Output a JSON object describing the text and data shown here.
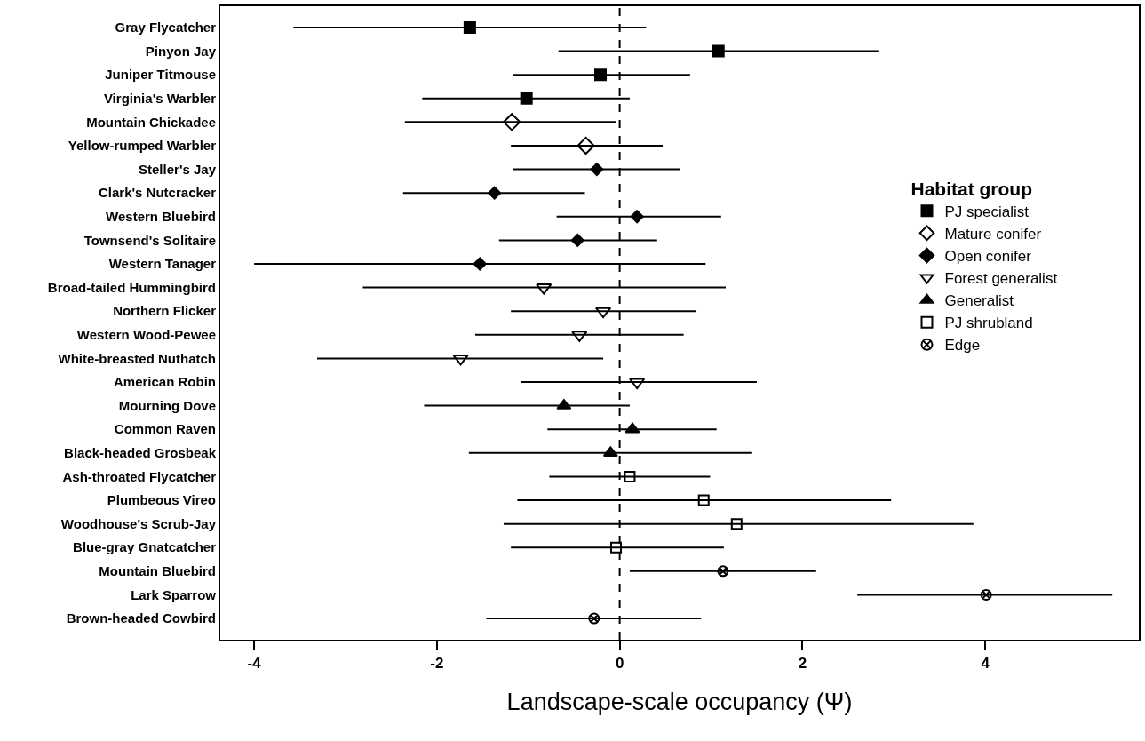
{
  "chart_data": {
    "type": "scatter",
    "orientation": "horizontal",
    "categories": [
      "Gray Flycatcher",
      "Pinyon Jay",
      "Juniper Titmouse",
      "Virginia's Warbler",
      "Mountain Chickadee",
      "Yellow-rumped Warbler",
      "Steller's Jay",
      "Clark's Nutcracker",
      "Western Bluebird",
      "Townsend's Solitaire",
      "Western Tanager",
      "Broad-tailed Hummingbird",
      "Northern Flicker",
      "Western Wood-Pewee",
      "White-breasted Nuthatch",
      "American Robin",
      "Mourning Dove",
      "Common Raven",
      "Black-headed Grosbeak",
      "Ash-throated Flycatcher",
      "Plumbeous Vireo",
      "Woodhouse's Scrub-Jay",
      "Blue-gray Gnatcatcher",
      "Mountain Bluebird",
      "Lark Sparrow",
      "Brown-headed Cowbird"
    ],
    "xlabel": "Landscape-scale occupancy (Ψ)",
    "legend_title": "Habitat group",
    "legend": "right",
    "xlim": [
      -4.37,
      5.68
    ],
    "xticks": [
      -4,
      -2,
      0,
      2,
      4
    ],
    "ref_lines": [
      {
        "axis": "x",
        "value": 0,
        "line_style": "dashed",
        "color": "#000000"
      }
    ],
    "series": [
      {
        "name": "PJ specialist",
        "color": "#000000",
        "marker": "square",
        "values": [
          -1.64,
          1.08,
          -0.21,
          -1.02,
          null,
          null,
          null,
          null,
          null,
          null,
          null,
          null,
          null,
          null,
          null,
          null,
          null,
          null,
          null,
          null,
          null,
          null,
          null,
          null,
          null,
          null
        ],
        "errors": [
          [
            -3.57,
            0.29
          ],
          [
            -0.67,
            2.83
          ],
          [
            -1.17,
            0.77
          ],
          [
            -2.16,
            0.11
          ],
          null,
          null,
          null,
          null,
          null,
          null,
          null,
          null,
          null,
          null,
          null,
          null,
          null,
          null,
          null,
          null,
          null,
          null,
          null,
          null,
          null,
          null
        ]
      },
      {
        "name": "Mature conifer",
        "color": "#000000",
        "marker": "diamond-open",
        "values": [
          null,
          null,
          null,
          null,
          -1.18,
          -0.37,
          null,
          null,
          null,
          null,
          null,
          null,
          null,
          null,
          null,
          null,
          null,
          null,
          null,
          null,
          null,
          null,
          null,
          null,
          null,
          null
        ],
        "errors": [
          null,
          null,
          null,
          null,
          [
            -2.35,
            -0.04
          ],
          [
            -1.19,
            0.47
          ],
          null,
          null,
          null,
          null,
          null,
          null,
          null,
          null,
          null,
          null,
          null,
          null,
          null,
          null,
          null,
          null,
          null,
          null,
          null,
          null
        ]
      },
      {
        "name": "Open conifer",
        "color": "#000000",
        "marker": "diamond",
        "values": [
          null,
          null,
          null,
          null,
          null,
          null,
          -0.25,
          -1.37,
          0.19,
          -0.46,
          -1.53,
          null,
          null,
          null,
          null,
          null,
          null,
          null,
          null,
          null,
          null,
          null,
          null,
          null,
          null,
          null
        ],
        "errors": [
          null,
          null,
          null,
          null,
          null,
          null,
          [
            -1.17,
            0.66
          ],
          [
            -2.37,
            -0.38
          ],
          [
            -0.69,
            1.11
          ],
          [
            -1.32,
            0.41
          ],
          [
            -4.0,
            0.94
          ],
          null,
          null,
          null,
          null,
          null,
          null,
          null,
          null,
          null,
          null,
          null,
          null,
          null,
          null,
          null
        ]
      },
      {
        "name": "Forest generalist",
        "color": "#000000",
        "marker": "triangle-down-open",
        "values": [
          null,
          null,
          null,
          null,
          null,
          null,
          null,
          null,
          null,
          null,
          null,
          -0.83,
          -0.18,
          -0.44,
          -1.74,
          0.19,
          null,
          null,
          null,
          null,
          null,
          null,
          null,
          null,
          null,
          null
        ],
        "errors": [
          null,
          null,
          null,
          null,
          null,
          null,
          null,
          null,
          null,
          null,
          null,
          [
            -2.81,
            1.16
          ],
          [
            -1.19,
            0.84
          ],
          [
            -1.58,
            0.7
          ],
          [
            -3.31,
            -0.18
          ],
          [
            -1.08,
            1.5
          ],
          null,
          null,
          null,
          null,
          null,
          null,
          null,
          null,
          null,
          null
        ]
      },
      {
        "name": "Generalist",
        "color": "#000000",
        "marker": "triangle",
        "values": [
          null,
          null,
          null,
          null,
          null,
          null,
          null,
          null,
          null,
          null,
          null,
          null,
          null,
          null,
          null,
          null,
          -0.61,
          0.14,
          -0.1,
          null,
          null,
          null,
          null,
          null,
          null,
          null
        ],
        "errors": [
          null,
          null,
          null,
          null,
          null,
          null,
          null,
          null,
          null,
          null,
          null,
          null,
          null,
          null,
          null,
          null,
          [
            -2.14,
            0.11
          ],
          [
            -0.79,
            1.06
          ],
          [
            -1.65,
            1.45
          ],
          null,
          null,
          null,
          null,
          null,
          null,
          null
        ]
      },
      {
        "name": "PJ shrubland",
        "color": "#000000",
        "marker": "square-open",
        "values": [
          null,
          null,
          null,
          null,
          null,
          null,
          null,
          null,
          null,
          null,
          null,
          null,
          null,
          null,
          null,
          null,
          null,
          null,
          null,
          0.11,
          0.92,
          1.28,
          -0.04,
          null,
          null,
          null
        ],
        "errors": [
          null,
          null,
          null,
          null,
          null,
          null,
          null,
          null,
          null,
          null,
          null,
          null,
          null,
          null,
          null,
          null,
          null,
          null,
          null,
          [
            -0.77,
            0.99
          ],
          [
            -1.12,
            2.97
          ],
          [
            -1.27,
            3.87
          ],
          [
            -1.19,
            1.14
          ],
          null,
          null,
          null
        ]
      },
      {
        "name": "Edge",
        "color": "#000000",
        "marker": "cross",
        "values": [
          null,
          null,
          null,
          null,
          null,
          null,
          null,
          null,
          null,
          null,
          null,
          null,
          null,
          null,
          null,
          null,
          null,
          null,
          null,
          null,
          null,
          null,
          null,
          1.13,
          4.01,
          -0.28
        ],
        "errors": [
          null,
          null,
          null,
          null,
          null,
          null,
          null,
          null,
          null,
          null,
          null,
          null,
          null,
          null,
          null,
          null,
          null,
          null,
          null,
          null,
          null,
          null,
          null,
          [
            0.11,
            2.15
          ],
          [
            2.6,
            5.39
          ],
          [
            -1.46,
            0.89
          ]
        ]
      }
    ]
  }
}
